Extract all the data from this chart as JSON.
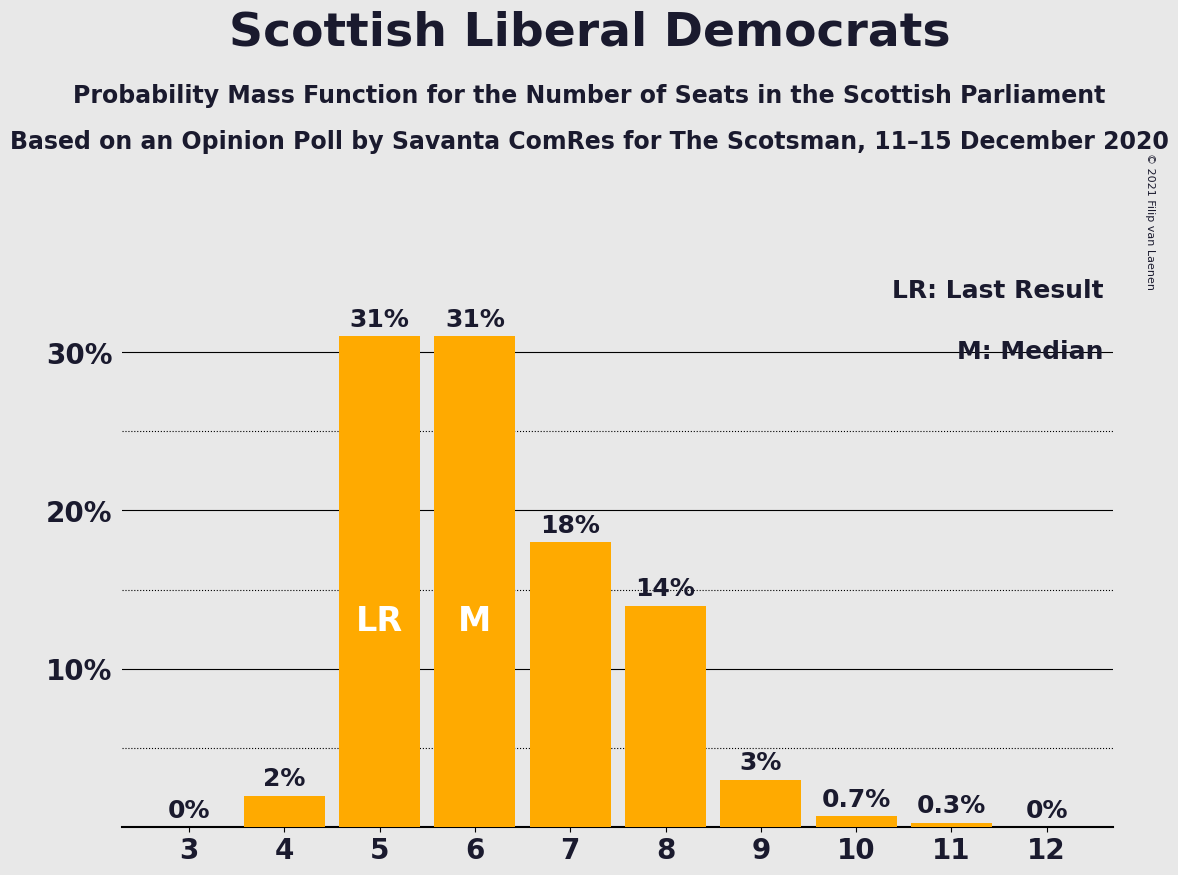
{
  "title": "Scottish Liberal Democrats",
  "subtitle1": "Probability Mass Function for the Number of Seats in the Scottish Parliament",
  "subtitle2": "Based on an Opinion Poll by Savanta ComRes for The Scotsman, 11–15 December 2020",
  "copyright": "© 2021 Filip van Laenen",
  "seats": [
    3,
    4,
    5,
    6,
    7,
    8,
    9,
    10,
    11,
    12
  ],
  "probabilities": [
    0.0,
    2.0,
    31.0,
    31.0,
    18.0,
    14.0,
    3.0,
    0.7,
    0.3,
    0.0
  ],
  "bar_color": "#FFAA00",
  "background_color": "#E8E8E8",
  "text_color": "#1a1a2e",
  "lr_seat": 5,
  "median_seat": 6,
  "lr_label": "LR",
  "median_label": "M",
  "legend_lr": "LR: Last Result",
  "legend_m": "M: Median",
  "dotted_grid_at": [
    5,
    15,
    25
  ],
  "solid_grid_at": [
    0,
    10,
    20,
    30
  ],
  "ylim": [
    0,
    35
  ],
  "bar_width": 0.85,
  "title_fontsize": 34,
  "subtitle_fontsize": 17,
  "axis_label_fontsize": 20,
  "bar_label_fontsize": 18,
  "legend_fontsize": 18,
  "lr_m_fontsize": 24,
  "copyright_fontsize": 8
}
